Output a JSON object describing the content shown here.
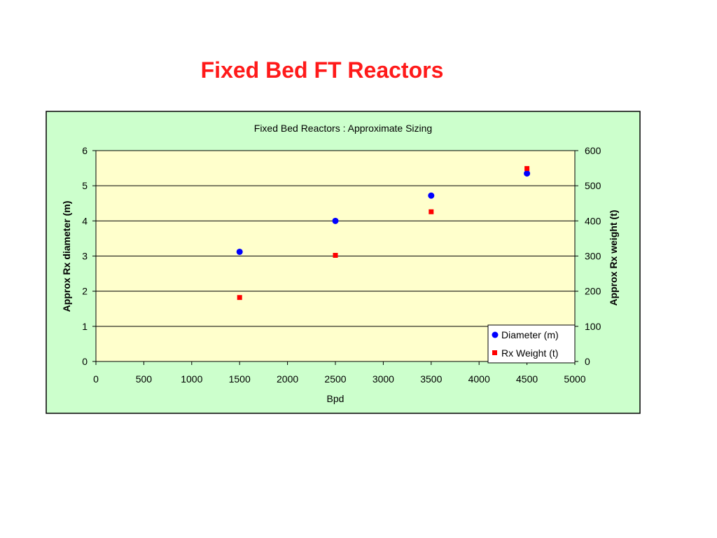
{
  "slide": {
    "title": "Fixed Bed FT Reactors"
  },
  "chart_data": {
    "type": "scatter",
    "title": "Fixed Bed Reactors : Approximate Sizing",
    "xlabel": "Bpd",
    "ylabel": "Approx Rx diameter (m)",
    "y2label": "Approx Rx weight (t)",
    "xlim": [
      0,
      5000
    ],
    "ylim": [
      0,
      6
    ],
    "y2lim": [
      0,
      600
    ],
    "xticks": [
      0,
      500,
      1000,
      1500,
      2000,
      2500,
      3000,
      3500,
      4000,
      4500,
      5000
    ],
    "yticks": [
      0,
      1,
      2,
      3,
      4,
      5,
      6
    ],
    "y2ticks": [
      0,
      100,
      200,
      300,
      400,
      500,
      600
    ],
    "grid": true,
    "legend_position": "bottom-right",
    "series": [
      {
        "name": "Diameter (m)",
        "axis": "left",
        "marker": "circle",
        "color": "#0000ff",
        "x": [
          1500,
          2500,
          3500,
          4500
        ],
        "y": [
          3.12,
          4.0,
          4.72,
          5.35
        ]
      },
      {
        "name": "Rx Weight (t)",
        "axis": "right",
        "marker": "square",
        "color": "#ff0000",
        "x": [
          1500,
          2500,
          3500,
          4500
        ],
        "y": [
          182,
          302,
          426,
          549
        ]
      }
    ]
  },
  "colors": {
    "title": "#ff1a1a",
    "chart_area": "#ccffcc",
    "plot_area": "#ffffcc"
  }
}
